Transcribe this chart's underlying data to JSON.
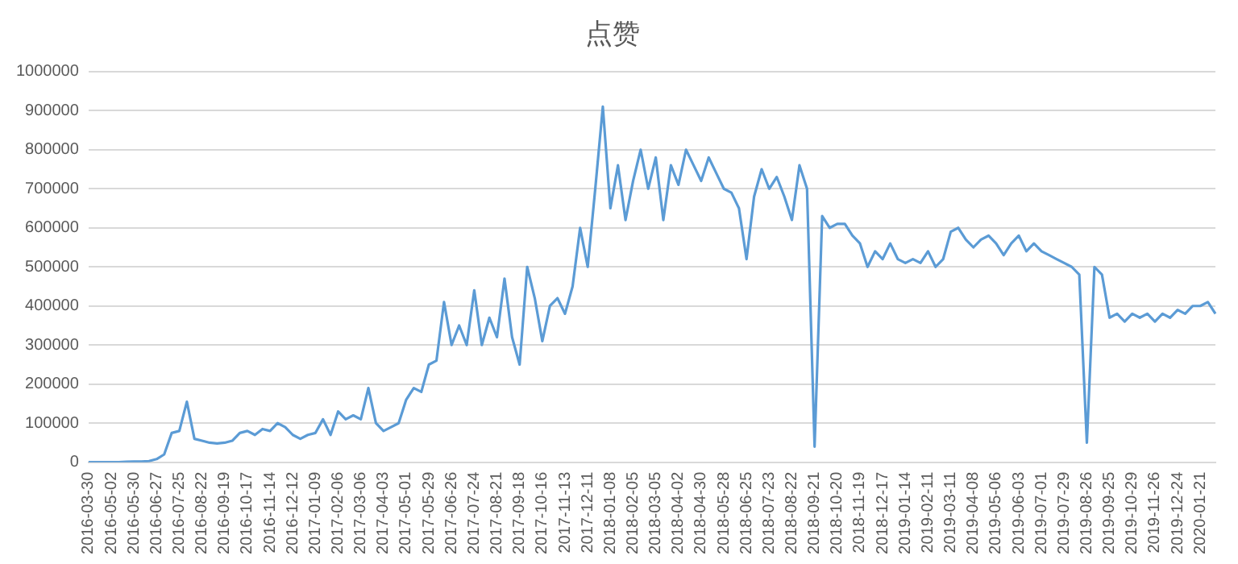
{
  "chart_data": {
    "type": "line",
    "title": "点赞",
    "categories": [
      "2016-03-30",
      null,
      null,
      "2016-05-02",
      null,
      null,
      "2016-05-30",
      null,
      null,
      "2016-06-27",
      null,
      null,
      "2016-07-25",
      null,
      null,
      "2016-08-22",
      null,
      null,
      "2016-09-19",
      null,
      null,
      "2016-10-17",
      null,
      null,
      "2016-11-14",
      null,
      null,
      "2016-12-12",
      null,
      null,
      "2017-01-09",
      null,
      null,
      "2017-02-06",
      null,
      null,
      "2017-03-06",
      null,
      null,
      "2017-04-03",
      null,
      null,
      "2017-05-01",
      null,
      null,
      "2017-05-29",
      null,
      null,
      "2017-06-26",
      null,
      null,
      "2017-07-24",
      null,
      null,
      "2017-08-21",
      null,
      null,
      "2017-09-18",
      null,
      null,
      "2017-10-16",
      null,
      null,
      "2017-11-13",
      null,
      null,
      "2017-12-11",
      null,
      null,
      "2018-01-08",
      null,
      null,
      "2018-02-05",
      null,
      null,
      "2018-03-05",
      null,
      null,
      "2018-04-02",
      null,
      null,
      "2018-04-30",
      null,
      null,
      "2018-05-28",
      null,
      null,
      "2018-06-25",
      null,
      null,
      "2018-07-23",
      null,
      null,
      "2018-08-22",
      null,
      null,
      "2018-09-21",
      null,
      null,
      "2018-10-20",
      null,
      null,
      "2018-11-19",
      null,
      null,
      "2018-12-17",
      null,
      null,
      "2019-01-14",
      null,
      null,
      "2019-02-11",
      null,
      null,
      "2019-03-11",
      null,
      null,
      "2019-04-08",
      null,
      null,
      "2019-05-06",
      null,
      null,
      "2019-06-03",
      null,
      null,
      "2019-07-01",
      null,
      null,
      "2019-07-29",
      null,
      null,
      "2019-08-26",
      null,
      null,
      "2019-09-25",
      null,
      null,
      "2019-10-29",
      null,
      null,
      "2019-11-26",
      null,
      null,
      "2019-12-24",
      null,
      null,
      "2020-01-21",
      null,
      null
    ],
    "series": [
      {
        "color": "#5b9bd5",
        "values": [
          0,
          0,
          0,
          0,
          0,
          1000,
          2000,
          2000,
          3000,
          8000,
          20000,
          75000,
          80000,
          155000,
          60000,
          55000,
          50000,
          48000,
          50000,
          55000,
          75000,
          80000,
          70000,
          85000,
          80000,
          100000,
          90000,
          70000,
          60000,
          70000,
          75000,
          110000,
          70000,
          130000,
          110000,
          120000,
          110000,
          190000,
          100000,
          80000,
          90000,
          100000,
          160000,
          190000,
          180000,
          250000,
          260000,
          410000,
          300000,
          350000,
          300000,
          440000,
          300000,
          370000,
          320000,
          470000,
          320000,
          250000,
          500000,
          420000,
          310000,
          400000,
          420000,
          380000,
          450000,
          600000,
          500000,
          700000,
          910000,
          650000,
          760000,
          620000,
          720000,
          800000,
          700000,
          780000,
          620000,
          760000,
          710000,
          800000,
          760000,
          720000,
          780000,
          740000,
          700000,
          690000,
          650000,
          520000,
          680000,
          750000,
          700000,
          730000,
          680000,
          620000,
          760000,
          700000,
          40000,
          630000,
          600000,
          610000,
          610000,
          580000,
          560000,
          500000,
          540000,
          520000,
          560000,
          520000,
          510000,
          520000,
          510000,
          540000,
          500000,
          520000,
          590000,
          600000,
          570000,
          550000,
          570000,
          580000,
          560000,
          530000,
          560000,
          580000,
          540000,
          560000,
          540000,
          530000,
          520000,
          510000,
          500000,
          480000,
          50000,
          500000,
          480000,
          370000,
          380000,
          360000,
          380000,
          370000,
          380000,
          360000,
          380000,
          370000,
          390000,
          380000,
          400000,
          400000,
          410000,
          380000
        ]
      }
    ],
    "ylim": [
      0,
      1000000
    ],
    "yticks": [
      0,
      100000,
      200000,
      300000,
      400000,
      500000,
      600000,
      700000,
      800000,
      900000,
      1000000
    ],
    "grid": "y",
    "legend": false,
    "marker": "none",
    "line_style": "solid"
  }
}
